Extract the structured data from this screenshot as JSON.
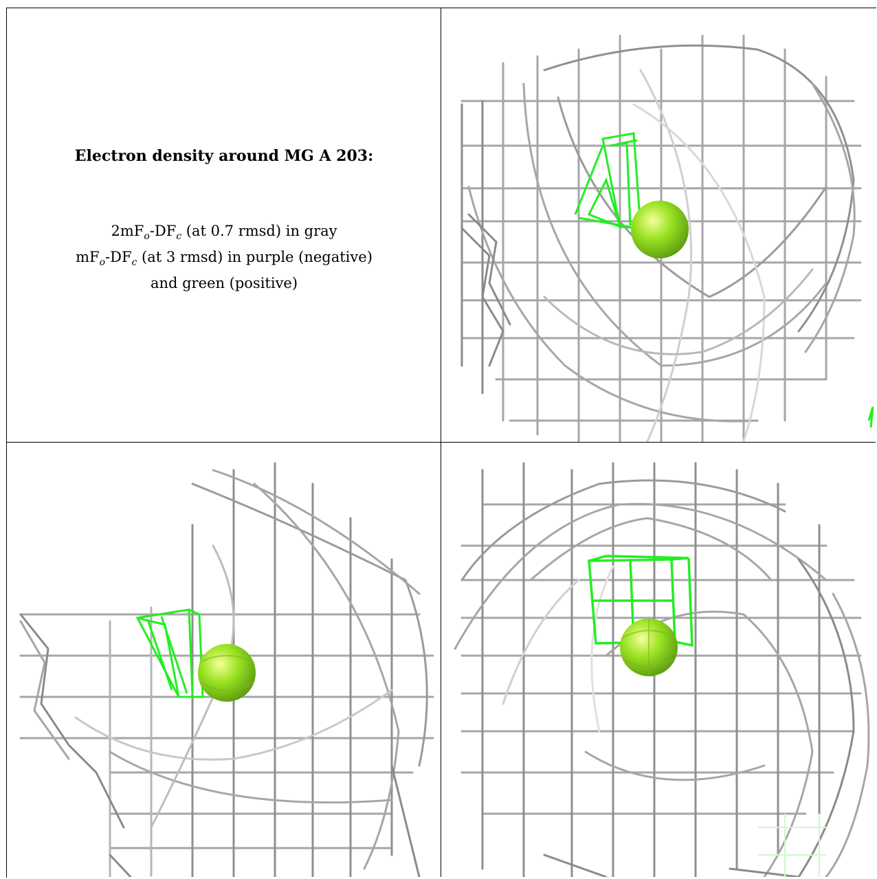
{
  "caption": {
    "title": "Electron density around MG A 203:",
    "line1_pre": "2mF",
    "line1_sub1": "o",
    "line1_mid": "-DF",
    "line1_sub2": "c",
    "line1_post": " (at 0.7 rmsd) in gray",
    "line2_pre": "mF",
    "line2_sub1": "o",
    "line2_mid": "-DF",
    "line2_sub2": "c",
    "line2_post": " (at 3 rmsd) in purple (negative)",
    "line3": "and green (positive)"
  },
  "colors": {
    "mesh_gray": "#9a9a9a",
    "mesh_green": "#22ee22",
    "ion_sphere": "#8fd81f"
  },
  "panels": [
    {
      "view": "view-1",
      "ion": "MG"
    },
    {
      "view": "view-2",
      "ion": "MG"
    },
    {
      "view": "view-3",
      "ion": "MG"
    }
  ]
}
